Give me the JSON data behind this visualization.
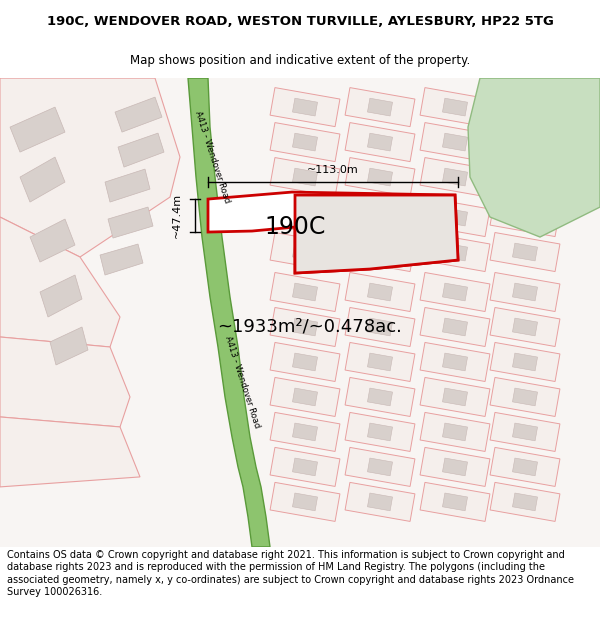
{
  "title_line1": "190C, WENDOVER ROAD, WESTON TURVILLE, AYLESBURY, HP22 5TG",
  "title_line2": "Map shows position and indicative extent of the property.",
  "footer_text": "Contains OS data © Crown copyright and database right 2021. This information is subject to Crown copyright and database rights 2023 and is reproduced with the permission of HM Land Registry. The polygons (including the associated geometry, namely x, y co-ordinates) are subject to Crown copyright and database rights 2023 Ordnance Survey 100026316.",
  "area_label": "~1933m²/~0.478ac.",
  "property_label": "190C",
  "dim_horizontal": "~113.0m",
  "dim_vertical": "~47.4m",
  "road_label_top": "A413 - Wendover Road",
  "road_label_bottom": "A413 - Wendover Road",
  "map_bg": "#f8f5f3",
  "road_fill": "#8dc46e",
  "road_edge": "#5a9a3a",
  "plot_fill": "#f5efec",
  "plot_stroke": "#e8a0a0",
  "building_fill": "#d8d0cc",
  "building_stroke": "#c8b8b5",
  "green_fill": "#c8dfc0",
  "green_stroke": "#90bb80",
  "prop_stroke": "#cc0000",
  "prop_fill": "#ffffff",
  "building2_fill": "#d0ccc8",
  "title_fontsize": 9.5,
  "subtitle_fontsize": 8.5,
  "footer_fontsize": 7.0
}
